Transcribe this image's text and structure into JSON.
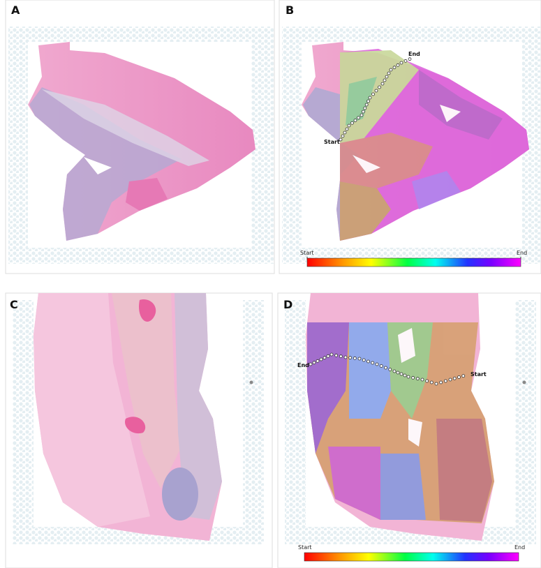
{
  "panels": [
    {
      "label": "A"
    },
    {
      "label": "B",
      "trajectory": {
        "start": "Start",
        "end": "End"
      },
      "colorbar": {
        "start": "Start",
        "end": "End"
      }
    },
    {
      "label": "C"
    },
    {
      "label": "D",
      "trajectory": {
        "start": "Start",
        "end": "End"
      },
      "colorbar": {
        "start": "Start",
        "end": "End"
      }
    }
  ]
}
